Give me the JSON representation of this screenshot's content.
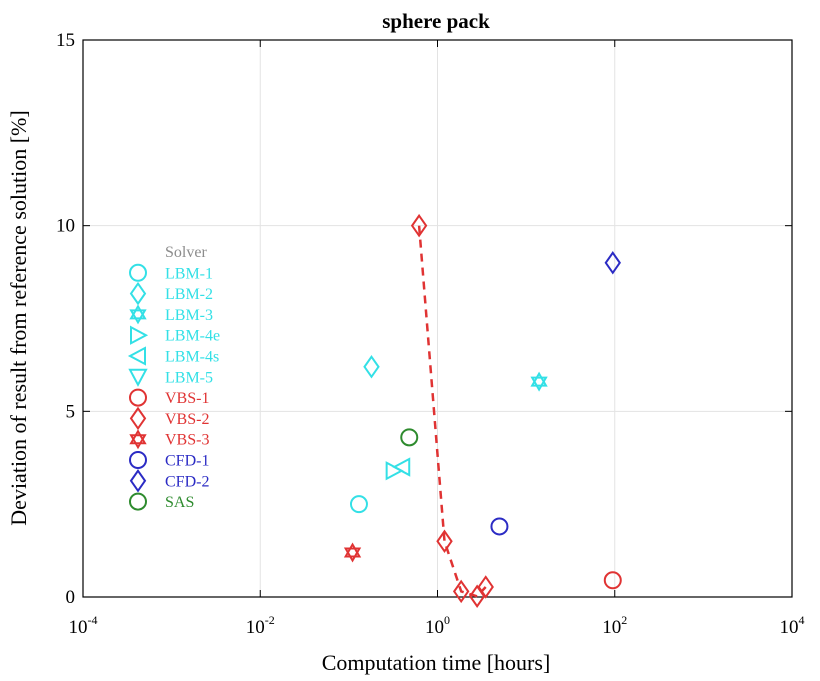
{
  "chart_data": {
    "type": "scatter",
    "title": "sphere pack",
    "xlabel": "Computation time [hours]",
    "ylabel": "Deviation of result from reference solution [%]",
    "xscale": "log",
    "xlim": [
      0.0001,
      10000
    ],
    "ylim": [
      0,
      15
    ],
    "x_ticks": [
      {
        "base": "10",
        "exp": "-4",
        "value": 0.0001
      },
      {
        "base": "10",
        "exp": "-2",
        "value": 0.01
      },
      {
        "base": "10",
        "exp": "0",
        "value": 1
      },
      {
        "base": "10",
        "exp": "2",
        "value": 100
      },
      {
        "base": "10",
        "exp": "4",
        "value": 10000
      }
    ],
    "y_ticks": [
      {
        "label": "0",
        "value": 0
      },
      {
        "label": "5",
        "value": 5
      },
      {
        "label": "10",
        "value": 10
      },
      {
        "label": "15",
        "value": 15
      }
    ],
    "grid": true,
    "legend_title": "Solver",
    "legend_position": "left",
    "series": [
      {
        "name": "LBM-1",
        "marker": "circle",
        "color": "#33e0e6",
        "points": [
          {
            "x": 0.13,
            "y": 2.5
          }
        ]
      },
      {
        "name": "LBM-2",
        "marker": "diamond",
        "color": "#33e0e6",
        "points": [
          {
            "x": 0.18,
            "y": 6.2
          }
        ]
      },
      {
        "name": "LBM-3",
        "marker": "hexagram",
        "color": "#33e0e6",
        "points": [
          {
            "x": 14,
            "y": 5.8
          }
        ]
      },
      {
        "name": "LBM-4e",
        "marker": "triangle-right",
        "color": "#33e0e6",
        "points": [
          {
            "x": 0.32,
            "y": 3.4
          }
        ]
      },
      {
        "name": "LBM-4s",
        "marker": "triangle-left",
        "color": "#33e0e6",
        "points": [
          {
            "x": 0.4,
            "y": 3.5
          }
        ]
      },
      {
        "name": "LBM-5",
        "marker": "triangle-down",
        "color": "#33e0e6",
        "points": []
      },
      {
        "name": "VBS-1",
        "marker": "circle",
        "color": "#e03333",
        "points": [
          {
            "x": 95,
            "y": 0.45
          }
        ]
      },
      {
        "name": "VBS-2",
        "marker": "diamond",
        "color": "#e03333",
        "dashed_line": true,
        "points": [
          {
            "x": 0.62,
            "y": 10.0
          },
          {
            "x": 1.2,
            "y": 1.5
          },
          {
            "x": 1.85,
            "y": 0.15
          },
          {
            "x": 2.8,
            "y": 0.02
          },
          {
            "x": 3.5,
            "y": 0.27
          }
        ]
      },
      {
        "name": "VBS-3",
        "marker": "hexagram",
        "color": "#e03333",
        "points": [
          {
            "x": 0.11,
            "y": 1.2
          }
        ]
      },
      {
        "name": "CFD-1",
        "marker": "circle",
        "color": "#2b2bc4",
        "points": [
          {
            "x": 5.0,
            "y": 1.9
          }
        ]
      },
      {
        "name": "CFD-2",
        "marker": "diamond",
        "color": "#2b2bc4",
        "points": [
          {
            "x": 95,
            "y": 9.0
          }
        ]
      },
      {
        "name": "SAS",
        "marker": "circle",
        "color": "#2e8b2e",
        "points": [
          {
            "x": 0.48,
            "y": 4.3
          }
        ]
      }
    ]
  }
}
